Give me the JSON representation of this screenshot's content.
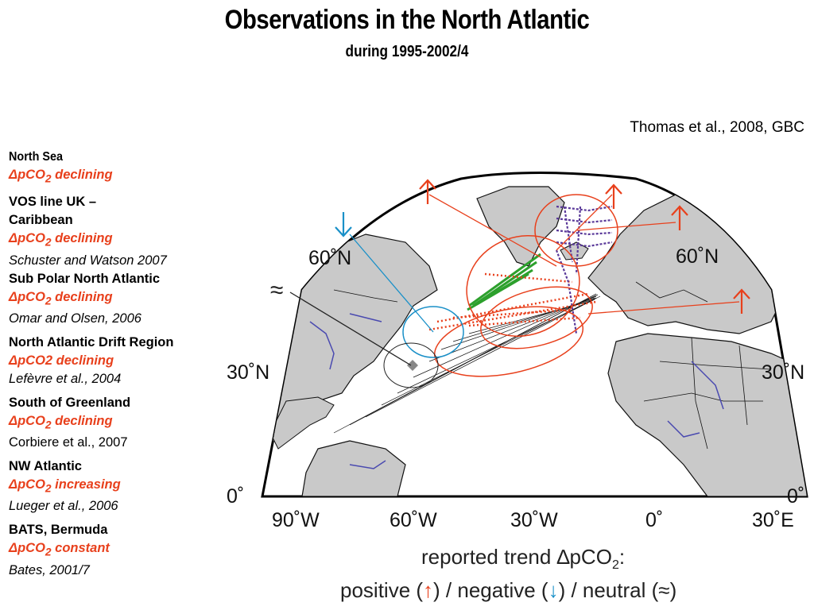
{
  "header": {
    "title": "Observations in the North Atlantic",
    "subtitle": "during 1995-2002/4"
  },
  "citation": "Thomas et al., 2008, GBC",
  "sidebar": {
    "entries": [
      {
        "region": "North Sea",
        "trend": "ΔpCO",
        "trend_sub": "2",
        "trend_tail": " declining",
        "ref": ""
      },
      {
        "region": "VOS line UK – Caribbean",
        "trend": "ΔpCO",
        "trend_sub": "2",
        "trend_tail": " declining",
        "ref": "Schuster and Watson 2007"
      },
      {
        "region": "Sub Polar North Atlantic",
        "trend": "ΔpCO",
        "trend_sub": "2",
        "trend_tail": " declining",
        "ref": "Omar and Olsen, 2006"
      },
      {
        "region": "North Atlantic Drift Region",
        "trend": "ΔpCO2 declining",
        "trend_sub": "",
        "trend_tail": "",
        "ref": "Lefèvre et al., 2004"
      },
      {
        "region": "South of Greenland",
        "trend": "ΔpCO",
        "trend_sub": "2",
        "trend_tail": " declining",
        "ref": "Corbiere et al., 2007"
      },
      {
        "region": "NW Atlantic",
        "trend": "ΔpCO",
        "trend_sub": "2",
        "trend_tail": " increasing",
        "ref": "Lueger et al., 2006"
      },
      {
        "region": "BATS, Bermuda",
        "trend": "ΔpCO",
        "trend_sub": "2",
        "trend_tail": " constant",
        "ref": "Bates, 2001/7"
      }
    ]
  },
  "map": {
    "lat_labels": [
      "60˚N",
      "30˚N",
      "0˚"
    ],
    "lon_labels": [
      "90˚W",
      "60˚W",
      "30˚W",
      "0˚",
      "30˚E"
    ],
    "neutral_symbol": "≈",
    "colors": {
      "positive": "#e8401c",
      "negative": "#1a90c8",
      "neutral": "#222222",
      "land": "#c9c9c9",
      "green_track": "#2ca02c",
      "purple_track": "#5b3a9a"
    }
  },
  "legend": {
    "line1_prefix": "reported trend ",
    "line1_symbol": "∆pCO",
    "line1_sub": "2",
    "line1_suffix": ":",
    "positive_label": "positive (",
    "positive_icon": "↑",
    "negative_label": ") / negative (",
    "negative_icon": "↓",
    "neutral_label": ") / neutral (",
    "neutral_icon": "≈",
    "close": ")"
  }
}
